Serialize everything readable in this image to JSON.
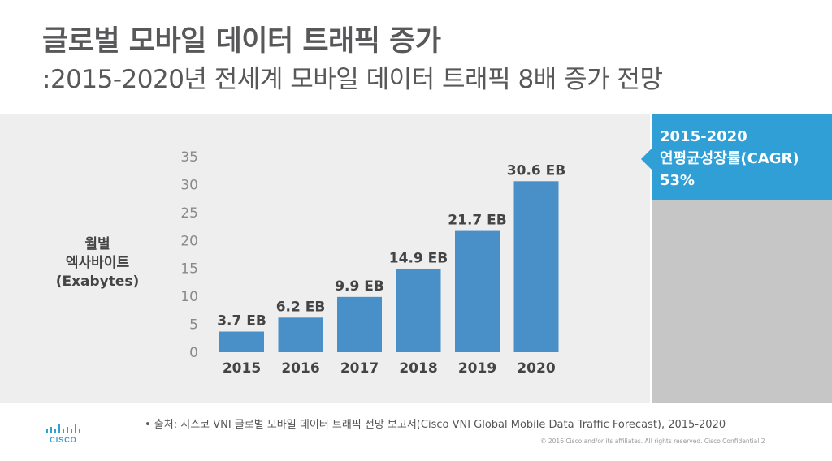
{
  "slide": {
    "title": "글로벌 모바일 데이터 트래픽 증가",
    "subtitle": ":2015-2020년 전세계 모바일 데이터 트래픽 8배 증가 전망",
    "callout": {
      "line1": "2015-2020",
      "line2": "연평균성장률(CAGR)",
      "line3": "53%"
    },
    "source": "•   출처: 시스코 VNI 글로벌 모바일 데이터 트래픽 전망 보고서(Cisco VNI Global Mobile Data Traffic Forecast), 2015-2020",
    "copyright": "© 2016  Cisco and/or its affiliates. All rights reserved.    Cisco Confidential          2",
    "logo_text": "CISCO"
  },
  "colors": {
    "bar": "#4a90c8",
    "callout": "#2f9fd6",
    "panel": "#eeeeee",
    "side_panel": "#c6c6c6"
  },
  "chart_data": {
    "type": "bar",
    "categories": [
      "2015",
      "2016",
      "2017",
      "2018",
      "2019",
      "2020"
    ],
    "values": [
      3.7,
      6.2,
      9.9,
      14.9,
      21.7,
      30.6
    ],
    "data_labels": [
      "3.7 EB",
      "6.2 EB",
      "9.9 EB",
      "14.9 EB",
      "21.7 EB",
      "30.6 EB"
    ],
    "ylabel_lines": [
      "월별",
      "엑사바이트",
      "(Exabytes)"
    ],
    "yticks": [
      0,
      5,
      10,
      15,
      20,
      25,
      30,
      35
    ],
    "ylim": [
      0,
      35
    ],
    "grid": false,
    "legend": "none"
  }
}
